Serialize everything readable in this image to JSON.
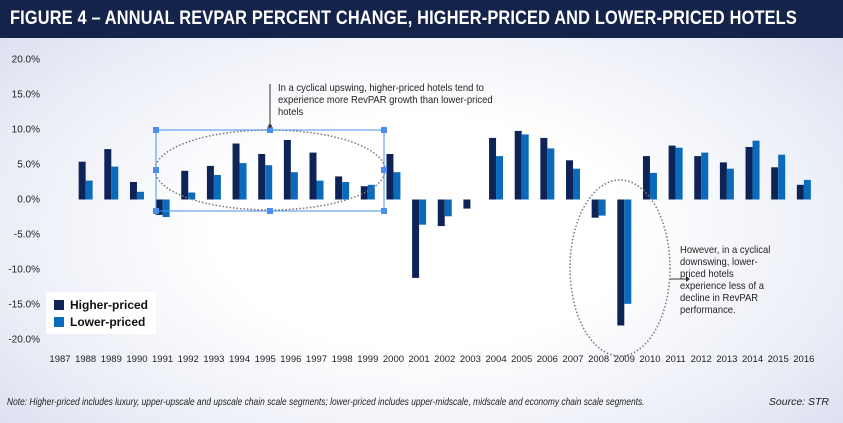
{
  "title": "FIGURE 4 – ANNUAL REVPAR PERCENT CHANGE, HIGHER-PRICED AND LOWER-PRICED HOTELS",
  "note": "Note: Higher-priced includes luxury, upper-upscale and upscale chain scale segments; lower-priced includes upper-midscale, midscale and economy chain scale segments.",
  "source": "Source: STR",
  "annotation_top": "In a cyclical upswing, higher-priced hotels tend to experience more RevPAR growth than lower-priced hotels",
  "annotation_right": "However, in a cyclical downswing, lower-priced hotels experience less of a decline in RevPAR performance.",
  "colors": {
    "header": "#14234a",
    "higher": "#0f2456",
    "lower": "#0a6bbd",
    "selection": "#4a8ff0"
  },
  "chart_data": {
    "type": "bar",
    "title": "FIGURE 4 – ANNUAL REVPAR PERCENT CHANGE, HIGHER-PRICED AND LOWER-PRICED HOTELS",
    "categories": [
      "1987",
      "1988",
      "1989",
      "1990",
      "1991",
      "1992",
      "1993",
      "1994",
      "1995",
      "1996",
      "1997",
      "1998",
      "1999",
      "2000",
      "2001",
      "2002",
      "2003",
      "2004",
      "2005",
      "2006",
      "2007",
      "2008",
      "2009",
      "2010",
      "2011",
      "2012",
      "2013",
      "2014",
      "2015",
      "2016"
    ],
    "series": [
      {
        "name": "Higher-priced",
        "values": [
          null,
          5.4,
          7.2,
          2.5,
          -2.2,
          4.1,
          4.8,
          8.0,
          6.5,
          8.5,
          6.7,
          3.3,
          1.9,
          6.5,
          -11.2,
          -3.8,
          -1.3,
          8.8,
          9.8,
          8.8,
          5.6,
          -2.6,
          -18.0,
          6.2,
          7.7,
          6.2,
          5.3,
          7.5,
          4.6,
          2.1
        ]
      },
      {
        "name": "Lower-priced",
        "values": [
          null,
          2.7,
          4.7,
          1.1,
          -2.5,
          1.0,
          3.5,
          5.2,
          4.9,
          3.9,
          2.7,
          2.5,
          2.1,
          3.9,
          -3.6,
          -2.4,
          null,
          6.2,
          9.3,
          7.3,
          4.4,
          -2.3,
          -14.9,
          3.8,
          7.4,
          6.7,
          4.4,
          8.4,
          6.4,
          2.8
        ]
      }
    ],
    "yticks": [
      "20.0%",
      "15.0%",
      "10.0%",
      "5.0%",
      "0.0%",
      "-5.0%",
      "-10.0%",
      "-15.0%",
      "-20.0%"
    ],
    "ylim": [
      -20,
      20
    ],
    "xlabel": "",
    "ylabel": "",
    "grid": false,
    "legend": "bottom-left"
  }
}
